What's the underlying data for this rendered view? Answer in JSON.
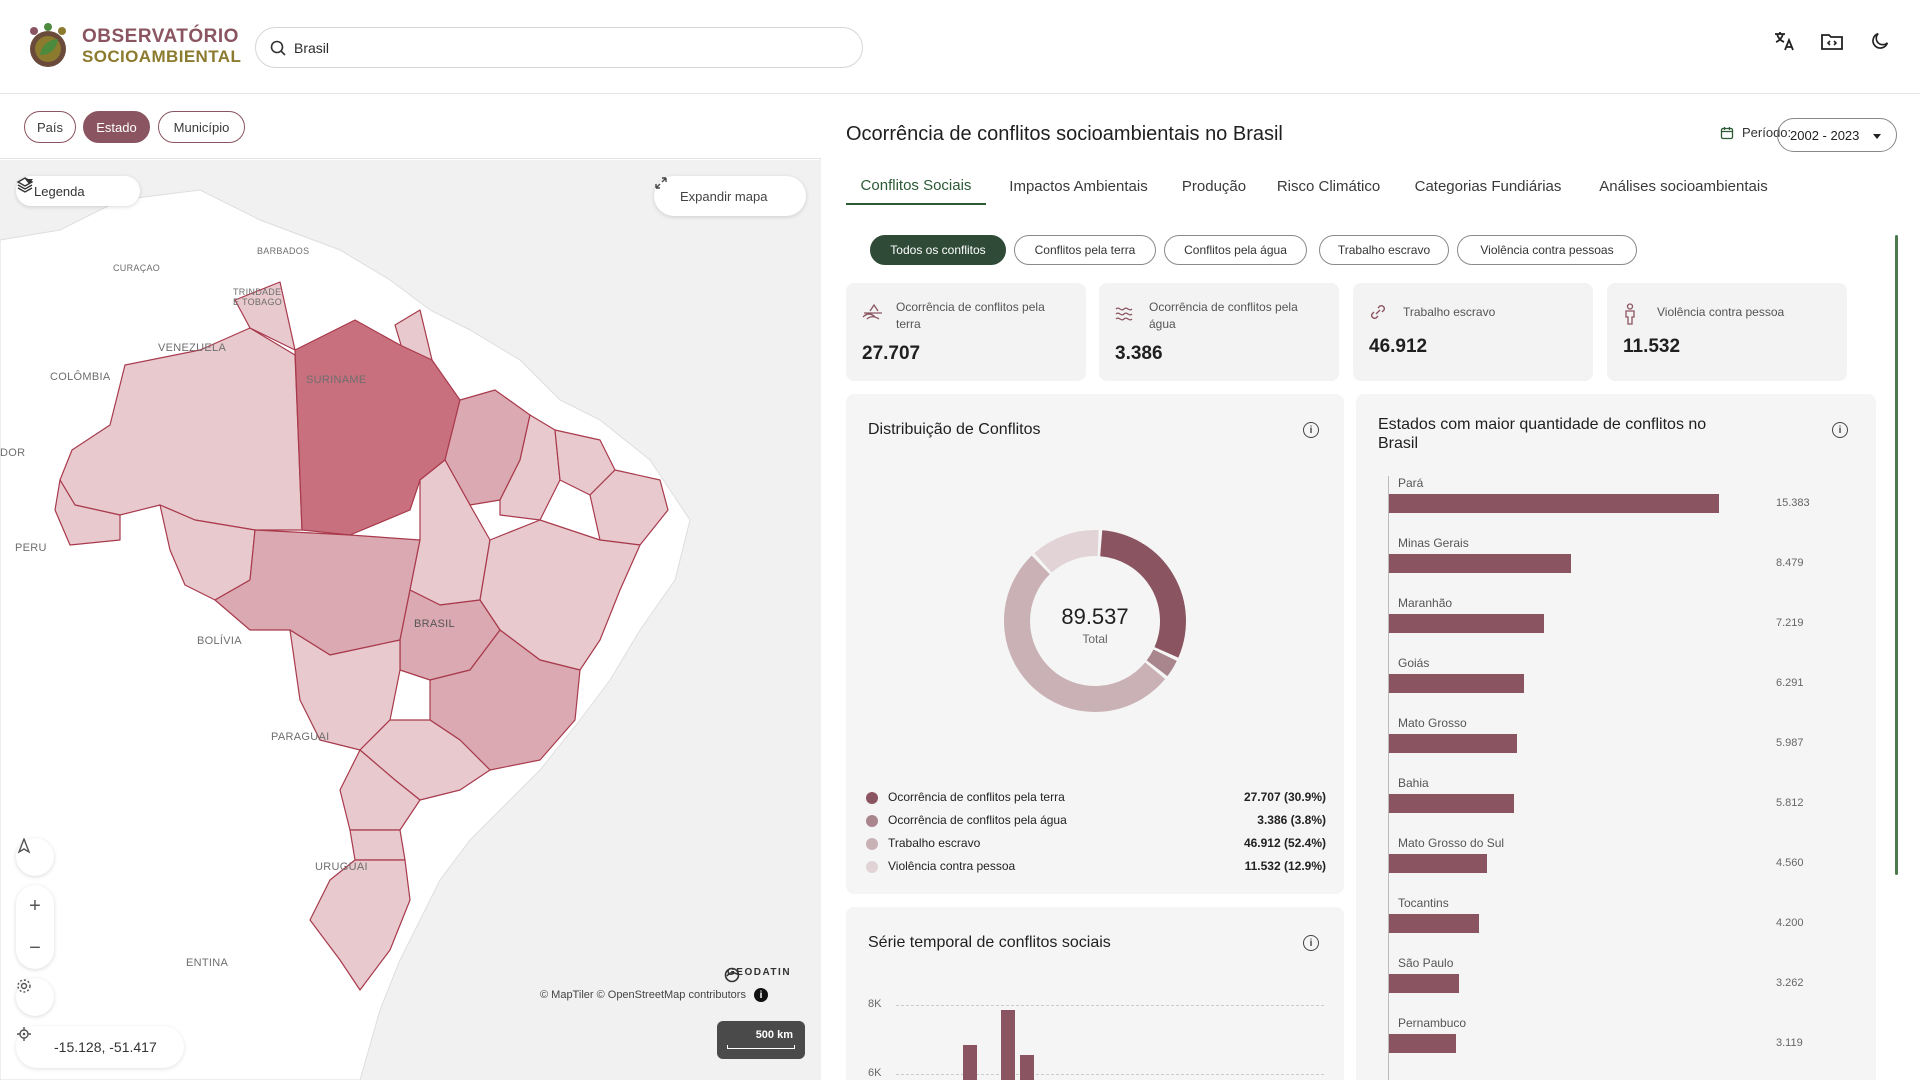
{
  "header": {
    "logo_line1": "OBSERVATÓRIO",
    "logo_line2": "SOCIOAMBIENTAL",
    "search_value": "Brasil",
    "icons": [
      "translate-icon",
      "folder-code-icon",
      "moon-icon"
    ]
  },
  "levels": [
    {
      "label": "País",
      "active": false
    },
    {
      "label": "Estado",
      "active": true
    },
    {
      "label": "Município",
      "active": false
    }
  ],
  "map": {
    "legend_label": "Legenda",
    "expand_label": "Expandir mapa",
    "labels": {
      "barbados": "BARBADOS",
      "curacao": "CURAÇAO",
      "trinidade": "TRINDADE",
      "etobago": "E TOBAGO",
      "venezuela": "VENEZUELA",
      "colombia": "COLÔMBIA",
      "suriname": "SURINAME",
      "equador": "DOR",
      "peru": "PERU",
      "bolivia": "BOLÍVIA",
      "brasil": "BRASIL",
      "paraguai": "PARAGUAI",
      "uruguai": "URUGUAI",
      "argentina": "ENTINA"
    },
    "coords": "-15.128, -51.417",
    "attribution": "© MapTiler © OpenStreetMap contributors",
    "geodatin": "GEODATIN",
    "scale": "500 km",
    "colors": {
      "land": "#ffffff",
      "state_light": "#e8c9ce",
      "state_mid": "#dba9b1",
      "state_dark": "#c9707e",
      "border": "#a83a4c"
    }
  },
  "panel": {
    "title": "Ocorrência de conflitos socioambientais no Brasil",
    "period_label": "Período:",
    "period_value": "2002 - 2023",
    "tabs": [
      {
        "label": "Conflitos Sociais",
        "active": true
      },
      {
        "label": "Impactos Ambientais",
        "active": false
      },
      {
        "label": "Produção",
        "active": false
      },
      {
        "label": "Risco Climático",
        "active": false
      },
      {
        "label": "Categorias Fundiárias",
        "active": false
      },
      {
        "label": "Análises socioambientais",
        "active": false
      }
    ],
    "chips": [
      {
        "label": "Todos os conflitos",
        "active": true
      },
      {
        "label": "Conflitos pela terra",
        "active": false
      },
      {
        "label": "Conflitos pela água",
        "active": false
      },
      {
        "label": "Trabalho escravo",
        "active": false
      },
      {
        "label": "Violência contra pessoas",
        "active": false
      }
    ],
    "stats": [
      {
        "label_l1": "Ocorrência de conflitos pela",
        "label_l2": "terra",
        "value": "27.707",
        "icon": "land-icon"
      },
      {
        "label_l1": "Ocorrência de conflitos pela",
        "label_l2": "água",
        "value": "3.386",
        "icon": "water-icon"
      },
      {
        "label_l1": "Trabalho escravo",
        "label_l2": "",
        "value": "46.912",
        "icon": "chain-icon"
      },
      {
        "label_l1": "Violência contra pessoa",
        "label_l2": "",
        "value": "11.532",
        "icon": "person-icon"
      }
    ]
  },
  "distribution": {
    "title": "Distribuição de Conflitos",
    "total_value": "89.537",
    "total_label": "Total",
    "legend": [
      {
        "name": "Ocorrência de conflitos pela terra",
        "value": "27.707 (30.9%)",
        "color": "#8a5560"
      },
      {
        "name": "Ocorrência de conflitos pela água",
        "value": "3.386 (3.8%)",
        "color": "#a9868d"
      },
      {
        "name": "Trabalho escravo",
        "value": "46.912 (52.4%)",
        "color": "#c9b1b6"
      },
      {
        "name": "Violência contra pessoa",
        "value": "11.532 (12.9%)",
        "color": "#e2d3d6"
      }
    ]
  },
  "timeseries": {
    "title": "Série temporal de conflitos sociais",
    "y_ticks": [
      "8K",
      "6K"
    ]
  },
  "ranking": {
    "title_l1": "Estados com maior quantidade de conflitos no",
    "title_l2": "Brasil",
    "bar_color": "#8a5560",
    "max": 15383,
    "items": [
      {
        "name": "Pará",
        "value": 15383,
        "label": "15.383"
      },
      {
        "name": "Minas Gerais",
        "value": 8479,
        "label": "8.479"
      },
      {
        "name": "Maranhão",
        "value": 7219,
        "label": "7.219"
      },
      {
        "name": "Goiás",
        "value": 6291,
        "label": "6.291"
      },
      {
        "name": "Mato Grosso",
        "value": 5987,
        "label": "5.987"
      },
      {
        "name": "Bahia",
        "value": 5812,
        "label": "5.812"
      },
      {
        "name": "Mato Grosso do Sul",
        "value": 4560,
        "label": "4.560"
      },
      {
        "name": "Tocantins",
        "value": 4200,
        "label": "4.200"
      },
      {
        "name": "São Paulo",
        "value": 3262,
        "label": "3.262"
      },
      {
        "name": "Pernambuco",
        "value": 3119,
        "label": "3.119"
      }
    ]
  }
}
